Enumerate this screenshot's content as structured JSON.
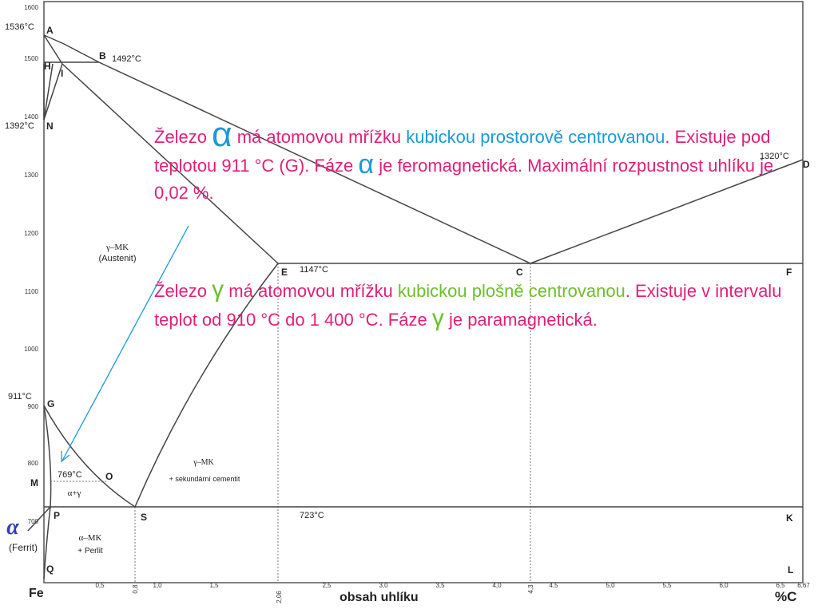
{
  "diagram": {
    "temp_ticks": [
      "1600",
      "1500",
      "1400",
      "1300",
      "1200",
      "1100",
      "1000",
      "900",
      "800",
      "700"
    ],
    "carbon_ticks": [
      "0,5",
      "0,8",
      "1,0",
      "1,5",
      "2,06",
      "2,5",
      "3,0",
      "3,5",
      "4,0",
      "4,3",
      "4,5",
      "5,0",
      "5,5",
      "6,0",
      "6,5",
      "6,67"
    ],
    "point_labels": [
      "A",
      "B",
      "H",
      "I",
      "N",
      "D",
      "E",
      "C",
      "F",
      "G",
      "O",
      "M",
      "P",
      "S",
      "K",
      "Q",
      "L"
    ],
    "temp_labels": {
      "a": "1536°C",
      "b": "1492°C",
      "n": "1392°C",
      "d": "1320°C",
      "e": "1147°C",
      "g": "911°C",
      "o": "769°C",
      "s": "723°C"
    },
    "phase_labels": {
      "austenite_1": "γ–MK",
      "austenite_2": "(Austenit)",
      "alpha_gamma": "α+γ",
      "gamma_cem_1": "γ–MK",
      "gamma_cem_2": "+ sekundární cementit",
      "alpha_perlit_1": "α–MK",
      "alpha_perlit_2": "+ Perlit",
      "alpha_symbol": "α",
      "ferrit": "(Ferrit)"
    },
    "axis": {
      "fe": "Fe",
      "xlabel": "obsah uhlíku",
      "unit": "%C"
    }
  },
  "text": {
    "p1": {
      "w1": "Železo",
      "alpha1": "α",
      "w2": "má atomovou mřížku",
      "w3": "kubickou prostorově centrovanou",
      "w4": ". Existuje pod teplotou 911 °C (G). Fáze",
      "alpha2": "α",
      "w5": "je feromagnetická. Maximální rozpustnost uhlíku je 0,02 %."
    },
    "p2": {
      "w1": "Železo",
      "gamma1": "γ",
      "w2": "má atomovou mřížku",
      "w3": "kubickou plošně centrovanou",
      "w4": ". Existuje v intervalu teplot od 910 °C do 1 400 °C. Fáze",
      "gamma2": "γ",
      "w5": "je paramagnetická."
    }
  },
  "colors": {
    "text_magenta": "#e0207a",
    "accent_blue": "#1a9ad6",
    "accent_green": "#6cbf2a",
    "arrow": "#1a9ad6",
    "lines": "#444444",
    "alpha_symbol": "#3040b0"
  }
}
